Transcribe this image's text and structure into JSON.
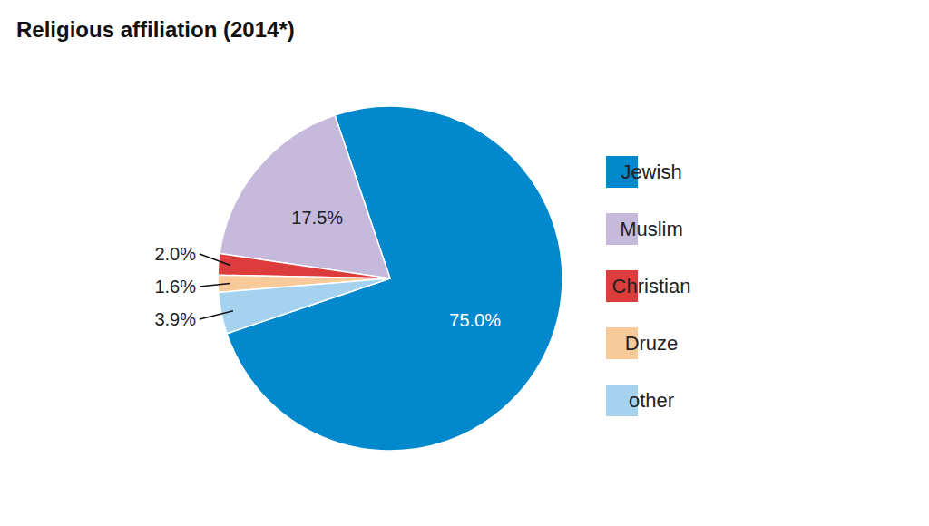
{
  "chart_data": {
    "type": "pie",
    "title": "Religious affiliation (2014*)",
    "categories": [
      "Jewish",
      "Muslim",
      "Christian",
      "Druze",
      "other"
    ],
    "values": [
      75,
      17.5,
      2,
      1.6,
      3.9
    ],
    "value_labels": [
      "75.0%",
      "17.5%",
      "2.0%",
      "1.6%",
      "3.9%"
    ],
    "colors": [
      "#0288cc",
      "#c5b9dc",
      "#dc3c3c",
      "#f8c999",
      "#a5d3ef"
    ],
    "data_labels": true,
    "legend": "right"
  }
}
